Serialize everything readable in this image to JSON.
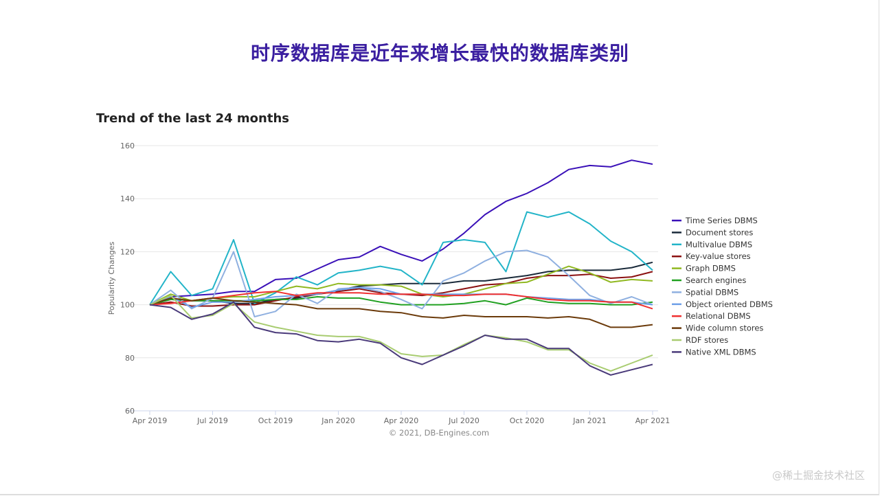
{
  "slide_title": "时序数据库是近年来增长最快的数据库类别",
  "watermark": "@稀土掘金技术社区",
  "chart_data": {
    "type": "line",
    "title": "Trend of the last 24 months",
    "xlabel": "",
    "ylabel": "Popularity Changes",
    "ylim": [
      60,
      160
    ],
    "yticks": [
      60,
      80,
      100,
      120,
      140,
      160
    ],
    "xtick_labels": [
      "Apr 2019",
      "Jul 2019",
      "Oct 2019",
      "Jan 2020",
      "Apr 2020",
      "Jul 2020",
      "Oct 2020",
      "Jan 2021",
      "Apr 2021"
    ],
    "x_months": 25,
    "grid": true,
    "legend_position": "right",
    "credit": "© 2021, DB-Engines.com",
    "series": [
      {
        "name": "Time Series DBMS",
        "color": "#3a10b8",
        "values": [
          100,
          103,
          103.5,
          104,
          105,
          105,
          109.5,
          110,
          113.5,
          117,
          118,
          122,
          119,
          116.5,
          121,
          127,
          134,
          139,
          142,
          146,
          151,
          152.5,
          152,
          154.5,
          153
        ]
      },
      {
        "name": "Document stores",
        "color": "#1a2a3a",
        "values": [
          100,
          102,
          101.5,
          101.5,
          100.5,
          100.5,
          102,
          102.5,
          104,
          105.5,
          107,
          107.5,
          108,
          108,
          108,
          109,
          109,
          110,
          111,
          112.5,
          113,
          113,
          113,
          114,
          116
        ]
      },
      {
        "name": "Multivalue DBMS",
        "color": "#22b4c8",
        "values": [
          100,
          112.5,
          103.5,
          106,
          124.5,
          100.5,
          104.5,
          110.5,
          107.5,
          112,
          113,
          114.5,
          113,
          107.5,
          123.5,
          124.5,
          123.5,
          112.5,
          135,
          133,
          135,
          130.5,
          124,
          120,
          113
        ]
      },
      {
        "name": "Key-value stores",
        "color": "#8b1010",
        "values": [
          100,
          101,
          99.5,
          99.5,
          100,
          100,
          101.5,
          103,
          104,
          105,
          106,
          104.5,
          104,
          103.5,
          104.5,
          106,
          107.5,
          108,
          110,
          111,
          111,
          111.5,
          110,
          110.5,
          112.5
        ]
      },
      {
        "name": "Graph DBMS",
        "color": "#90b820",
        "values": [
          100,
          104,
          101.5,
          102.5,
          103,
          103,
          105,
          107,
          106,
          108,
          107.5,
          107.5,
          107,
          104,
          103,
          104,
          106,
          108,
          108.5,
          111.5,
          114.5,
          112,
          108.5,
          109.5,
          109
        ]
      },
      {
        "name": "Search engines",
        "color": "#20a020",
        "values": [
          100,
          102,
          101.5,
          101.5,
          101.5,
          101.5,
          102,
          102,
          103,
          102.5,
          102.5,
          101,
          100,
          100,
          100,
          100.5,
          101.5,
          100,
          102.5,
          101,
          100.5,
          100.5,
          100,
          100,
          101
        ]
      },
      {
        "name": "Spatial DBMS",
        "color": "#8fb0e0",
        "values": [
          100,
          105.5,
          98.5,
          102.5,
          120,
          95.5,
          97.5,
          104,
          100.5,
          106,
          106.5,
          105,
          102,
          98.5,
          109,
          112,
          116.5,
          120,
          120.5,
          118,
          111,
          103.5,
          100.5,
          103,
          100
        ]
      },
      {
        "name": "Object oriented DBMS",
        "color": "#6fa0e8",
        "values": [
          100,
          103,
          99,
          101,
          101,
          102,
          103,
          103.5,
          104,
          105.5,
          106.5,
          106,
          104,
          104,
          104,
          104,
          104,
          104,
          103,
          102.5,
          102,
          102,
          101,
          101,
          100
        ]
      },
      {
        "name": "Relational DBMS",
        "color": "#f03030",
        "values": [
          100,
          100.5,
          101.5,
          102.5,
          103.5,
          104.5,
          105,
          103.5,
          104.5,
          104.5,
          104.5,
          104,
          104,
          104,
          103.5,
          103.5,
          104,
          104,
          103,
          102,
          101.5,
          101.5,
          101,
          101,
          98.5
        ]
      },
      {
        "name": "Wide column stores",
        "color": "#6b3a0a",
        "values": [
          100,
          102.5,
          101.5,
          102.5,
          101.5,
          101,
          100.5,
          100,
          98.5,
          98.5,
          98.5,
          97.5,
          97,
          95.5,
          95,
          96,
          95.5,
          95.5,
          95.5,
          95,
          95.5,
          94.5,
          91.5,
          91.5,
          92.5
        ]
      },
      {
        "name": "RDF stores",
        "color": "#a8cc70",
        "values": [
          100,
          103.5,
          95,
          96,
          100.5,
          93.5,
          91.5,
          90,
          88.5,
          88,
          88,
          86,
          81.5,
          80.5,
          81,
          85,
          88.5,
          87.5,
          86,
          83,
          83,
          78,
          75,
          78,
          81
        ]
      },
      {
        "name": "Native XML DBMS",
        "color": "#4a3a7a",
        "values": [
          100,
          99,
          94.5,
          96.5,
          101,
          91.5,
          89.5,
          89,
          86.5,
          86,
          87,
          85.5,
          80,
          77.5,
          81,
          84.5,
          88.5,
          87,
          87,
          83.5,
          83.5,
          77,
          73.5,
          75.5,
          77.5
        ]
      }
    ]
  }
}
